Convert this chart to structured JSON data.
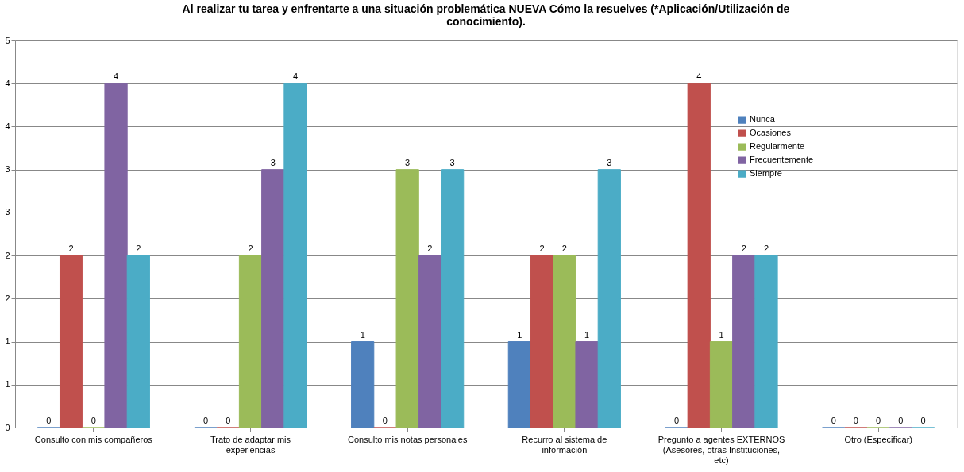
{
  "chart_data": {
    "type": "bar",
    "title": "Al realizar tu tarea y enfrentarte  a una situación problemática NUEVA Cómo la resuelves (*Aplicación/Utilización de conocimiento).",
    "categories": [
      "Consulto con mis compañeros",
      "Trato de adaptar mis experiencias",
      "Consulto mis notas personales",
      "Recurro al sistema de información",
      "Pregunto a agentes EXTERNOS (Asesores, otras Instituciones, etc)",
      "Otro (Especificar)"
    ],
    "series": [
      {
        "name": "Nunca",
        "color": "#4f81bd",
        "values": [
          0,
          0,
          1,
          1,
          0,
          0
        ]
      },
      {
        "name": "Ocasiones",
        "color": "#c0504d",
        "values": [
          2,
          0,
          0,
          2,
          4,
          0
        ]
      },
      {
        "name": "Regularmente",
        "color": "#9bbb59",
        "values": [
          0,
          2,
          3,
          2,
          1,
          0
        ]
      },
      {
        "name": "Frecuentemente",
        "color": "#8064a2",
        "values": [
          4,
          3,
          2,
          1,
          2,
          0
        ]
      },
      {
        "name": "Siempre",
        "color": "#4bacc6",
        "values": [
          2,
          4,
          3,
          3,
          2,
          0
        ]
      }
    ],
    "ylim": [
      0,
      4.5
    ],
    "yticks": [
      0,
      {
        "value": 0.5,
        "label": "1"
      },
      1,
      {
        "value": 1.5,
        "label": "2"
      },
      2,
      {
        "value": 2.5,
        "label": "3"
      },
      3,
      {
        "value": 3.5,
        "label": "4"
      },
      4,
      {
        "value": 4.5,
        "label": "5"
      }
    ],
    "grid": "y",
    "legend": "right",
    "data_labels": true
  }
}
